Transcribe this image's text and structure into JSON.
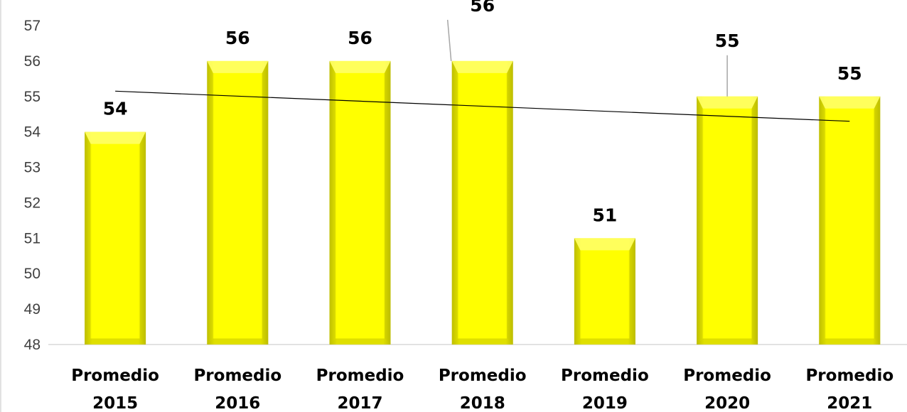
{
  "chart_data": {
    "type": "bar",
    "title": "",
    "xlabel": "",
    "ylabel": "",
    "categories": [
      [
        "Promedio",
        "2015"
      ],
      [
        "Promedio",
        "2016"
      ],
      [
        "Promedio",
        "2017"
      ],
      [
        "Promedio",
        "2018"
      ],
      [
        "Promedio",
        "2019"
      ],
      [
        "Promedio",
        "2020"
      ],
      [
        "Promedio",
        "2021"
      ]
    ],
    "values": [
      54,
      56,
      56,
      56,
      51,
      55,
      55
    ],
    "data_labels": [
      "54",
      "56",
      "56",
      "56",
      "51",
      "55",
      "55"
    ],
    "yticks": [
      48,
      49,
      50,
      51,
      52,
      53,
      54,
      55,
      56,
      57
    ],
    "ylim": [
      48,
      57
    ],
    "trendline": {
      "type": "linear",
      "start": 55.15,
      "end": 54.3,
      "color": "#000000"
    },
    "bar_color": "#ffff00",
    "bar_shade_color": "#b0b000",
    "leader_line_color": "#a6a6a6",
    "grid": false,
    "legend": "none"
  }
}
